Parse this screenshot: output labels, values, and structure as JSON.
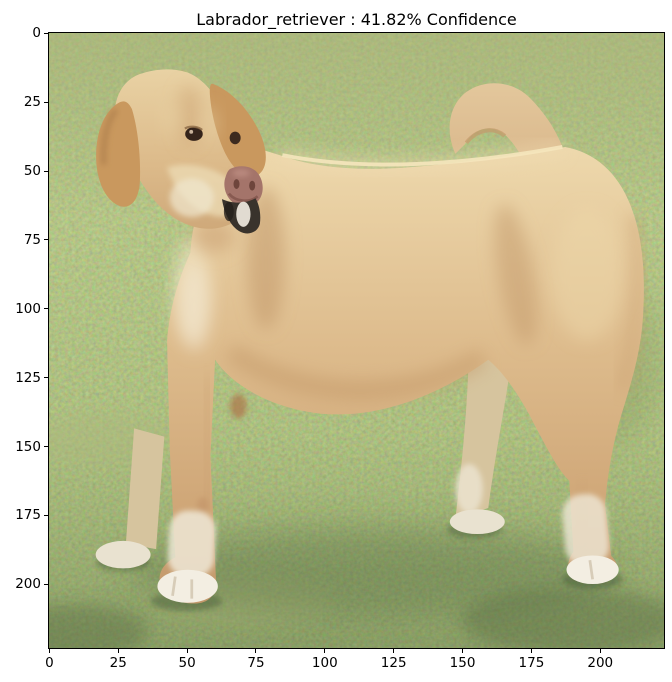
{
  "figure": {
    "title": "Labrador_retriever : 41.82% Confidence",
    "prediction_class": "Labrador_retriever",
    "confidence": "41.82%",
    "background_color": "#ffffff",
    "text_color": "#000000"
  },
  "axes": {
    "x_ticks": [
      0,
      25,
      50,
      75,
      100,
      125,
      150,
      175,
      200
    ],
    "y_ticks": [
      0,
      25,
      50,
      75,
      100,
      125,
      150,
      175,
      200
    ],
    "x_range": [
      -0.5,
      223.5
    ],
    "y_range": [
      223.5,
      -0.5
    ],
    "image_size": "224x224",
    "frame_color": "#000000"
  },
  "photo": {
    "subject": "Yellow Labrador retriever standing on green grass, body facing right, head turned toward viewer, curled tail with white tip, white paws and muzzle",
    "colors": {
      "grass_mid": "#84975a",
      "grass_dark": "#5d7440",
      "grass_light": "#a3ae77",
      "coat_tan": "#dcba8c",
      "coat_light": "#eedcb4",
      "coat_shadow": "#c49a66",
      "white_fur": "#f2ece0",
      "ear_tan": "#c9985e",
      "nose": "#a4746a",
      "eye": "#35241b",
      "mouth_dark": "#39332c"
    }
  }
}
